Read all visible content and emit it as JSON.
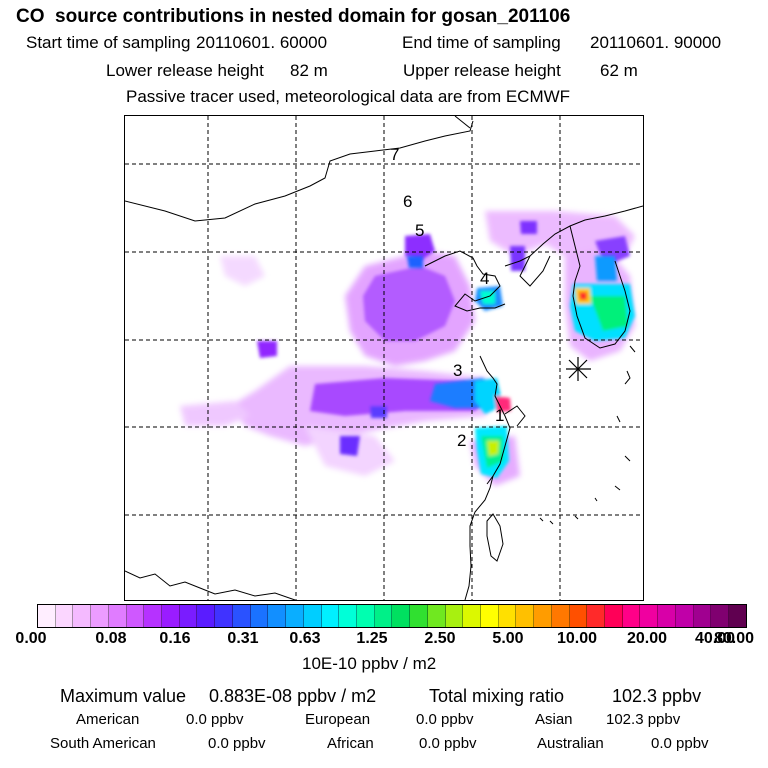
{
  "header": {
    "title": "CO  source contributions in nested domain for gosan_201106",
    "start_label": "Start time of sampling",
    "start_value": "20110601. 60000",
    "end_label": "End time of sampling",
    "end_value": "20110601. 90000",
    "lower_label": "Lower release height",
    "lower_value": "82 m",
    "upper_label": "Upper release height",
    "upper_value": "62 m",
    "note": "Passive tracer used, meteorological data are from ECMWF"
  },
  "map": {
    "region_labels": [
      {
        "id": "1",
        "text": "1"
      },
      {
        "id": "2",
        "text": "2"
      },
      {
        "id": "3",
        "text": "3"
      },
      {
        "id": "4",
        "text": "4"
      },
      {
        "id": "5",
        "text": "5"
      },
      {
        "id": "6",
        "text": "6"
      },
      {
        "id": "7",
        "text": "7"
      }
    ],
    "receptor": "Gosan"
  },
  "colorbar": {
    "colors": [
      "#ffeeff",
      "#fbd6ff",
      "#f4baff",
      "#ec9cff",
      "#e07cff",
      "#cf58ff",
      "#b632ff",
      "#9a1cff",
      "#7a1cff",
      "#5a1cff",
      "#4033ff",
      "#2a52ff",
      "#1a72ff",
      "#128fff",
      "#0aaeff",
      "#00ceff",
      "#00f0ff",
      "#00ffd8",
      "#00ffb0",
      "#00f088",
      "#00e060",
      "#30e030",
      "#70e820",
      "#a8f010",
      "#dcf800",
      "#ffff00",
      "#ffe000",
      "#ffc000",
      "#ff9c00",
      "#ff7800",
      "#ff5000",
      "#ff2a2a",
      "#ff0058",
      "#ff0088",
      "#f000a0",
      "#d800a8",
      "#c000a8",
      "#a00090",
      "#800070",
      "#600050"
    ],
    "ticks": [
      "0.00",
      "0.08",
      "0.16",
      "0.31",
      "0.63",
      "1.25",
      "2.50",
      "5.00",
      "10.00",
      "20.00",
      "40.00",
      "80.00"
    ],
    "unit": "10E-10 ppbv / m2"
  },
  "stats": {
    "max_label": "Maximum value",
    "max_value": "0.883E-08 ppbv / m2",
    "total_label": "Total mixing ratio",
    "total_value": "102.3 ppbv",
    "regions": [
      {
        "name": "American",
        "value": "0.0 ppbv"
      },
      {
        "name": "European",
        "value": "0.0 ppbv"
      },
      {
        "name": "Asian",
        "value": "102.3 ppbv"
      },
      {
        "name": "South American",
        "value": "0.0 ppbv"
      },
      {
        "name": "African",
        "value": "0.0 ppbv"
      },
      {
        "name": "Australian",
        "value": "0.0 ppbv"
      }
    ]
  }
}
